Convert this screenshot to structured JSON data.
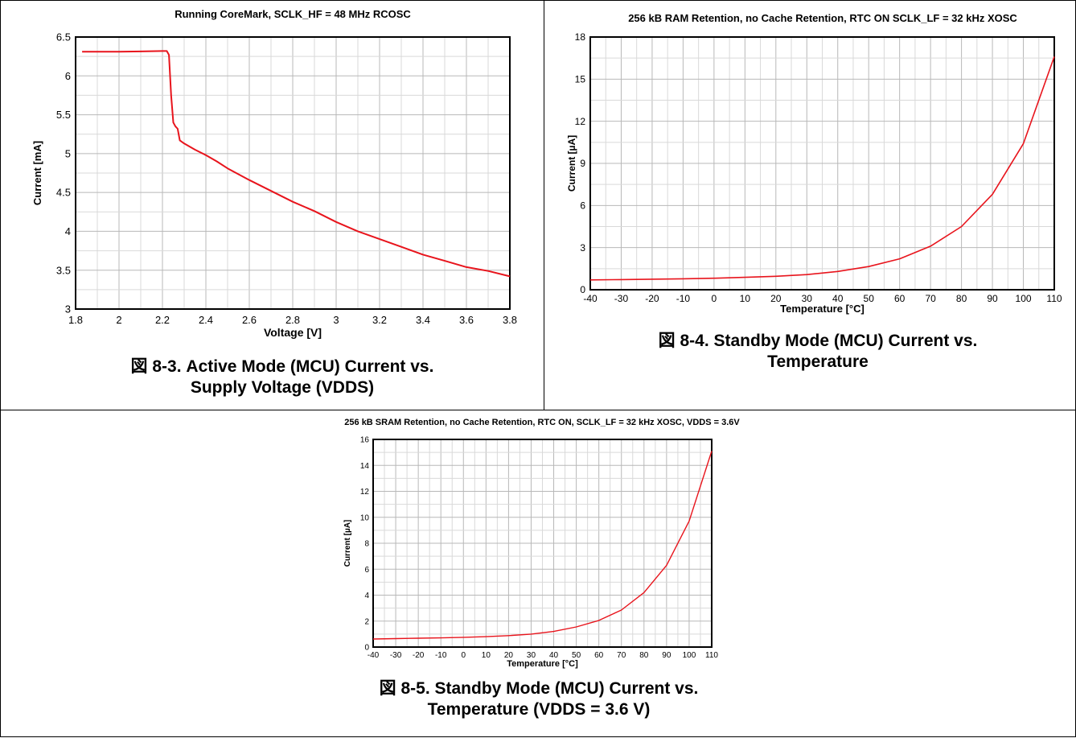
{
  "charts": [
    {
      "id": "fig-8-3",
      "caption_line1": "図 8-3. Active Mode (MCU) Current vs.",
      "caption_line2": "Supply Voltage (VDDS)"
    },
    {
      "id": "fig-8-4",
      "caption_line1": "図 8-4. Standby Mode (MCU) Current vs.",
      "caption_line2": "Temperature"
    },
    {
      "id": "fig-8-5",
      "caption_line1": "図 8-5. Standby Mode (MCU) Current vs.",
      "caption_line2": "Temperature (VDDS = 3.6 V)"
    }
  ],
  "chart_data": [
    {
      "type": "line",
      "title": "Running CoreMark, SCLK_HF = 48 MHz RCOSC",
      "xlabel": "Voltage [V]",
      "ylabel": "Current [mA]",
      "xlim": [
        1.8,
        3.8
      ],
      "ylim": [
        3,
        6.5
      ],
      "xticks": [
        "1.8",
        "2",
        "2.2",
        "2.4",
        "2.6",
        "2.8",
        "3",
        "3.2",
        "3.4",
        "3.6",
        "3.8"
      ],
      "yticks": [
        "3",
        "3.5",
        "4",
        "4.5",
        "5",
        "5.5",
        "6",
        "6.5"
      ],
      "grid": true,
      "line_color": "#e8141c",
      "series": [
        {
          "x": [
            1.83,
            2.0,
            2.1,
            2.2,
            2.22,
            2.23,
            2.24,
            2.25,
            2.26,
            2.27,
            2.28,
            2.3,
            2.35,
            2.4,
            2.45,
            2.5,
            2.6,
            2.7,
            2.8,
            2.9,
            3.0,
            3.1,
            3.2,
            3.3,
            3.4,
            3.5,
            3.6,
            3.7,
            3.8
          ],
          "y": [
            6.31,
            6.31,
            6.315,
            6.32,
            6.32,
            6.27,
            5.75,
            5.4,
            5.35,
            5.32,
            5.17,
            5.13,
            5.05,
            4.98,
            4.9,
            4.81,
            4.66,
            4.52,
            4.38,
            4.26,
            4.12,
            4.0,
            3.9,
            3.8,
            3.7,
            3.62,
            3.54,
            3.49,
            3.42
          ]
        }
      ]
    },
    {
      "type": "line",
      "title": "256 kB RAM Retention, no Cache Retention, RTC ON SCLK_LF = 32 kHz XOSC",
      "xlabel": "Temperature [°C]",
      "ylabel": "Current [µA]",
      "xlim": [
        -40,
        110
      ],
      "ylim": [
        0,
        18
      ],
      "xticks": [
        "-40",
        "-30",
        "-20",
        "-10",
        "0",
        "10",
        "20",
        "30",
        "40",
        "50",
        "60",
        "70",
        "80",
        "90",
        "100",
        "110"
      ],
      "yticks": [
        "0",
        "3",
        "6",
        "9",
        "12",
        "15",
        "18"
      ],
      "grid": true,
      "line_color": "#e8141c",
      "series": [
        {
          "x": [
            -40,
            -30,
            -20,
            -10,
            0,
            10,
            20,
            30,
            40,
            50,
            60,
            70,
            80,
            90,
            100,
            110
          ],
          "y": [
            0.7,
            0.72,
            0.75,
            0.78,
            0.82,
            0.88,
            0.96,
            1.08,
            1.3,
            1.65,
            2.2,
            3.1,
            4.5,
            6.8,
            10.4,
            16.6
          ]
        }
      ]
    },
    {
      "type": "line",
      "title": "256 kB SRAM Retention, no Cache Retention, RTC ON, SCLK_LF = 32 kHz XOSC, VDDS = 3.6V",
      "xlabel": "Temperature [°C]",
      "ylabel": "Current [µA]",
      "xlim": [
        -40,
        110
      ],
      "ylim": [
        0,
        16
      ],
      "xticks": [
        "-40",
        "-30",
        "-20",
        "-10",
        "0",
        "10",
        "20",
        "30",
        "40",
        "50",
        "60",
        "70",
        "80",
        "90",
        "100",
        "110"
      ],
      "yticks": [
        "0",
        "2",
        "4",
        "6",
        "8",
        "10",
        "12",
        "14",
        "16"
      ],
      "grid": true,
      "line_color": "#e8141c",
      "series": [
        {
          "x": [
            -40,
            -30,
            -20,
            -10,
            0,
            10,
            20,
            30,
            40,
            50,
            60,
            70,
            80,
            90,
            100,
            110
          ],
          "y": [
            0.62,
            0.65,
            0.68,
            0.71,
            0.75,
            0.8,
            0.88,
            1.0,
            1.2,
            1.55,
            2.05,
            2.85,
            4.2,
            6.3,
            9.7,
            15.1
          ]
        }
      ]
    }
  ]
}
